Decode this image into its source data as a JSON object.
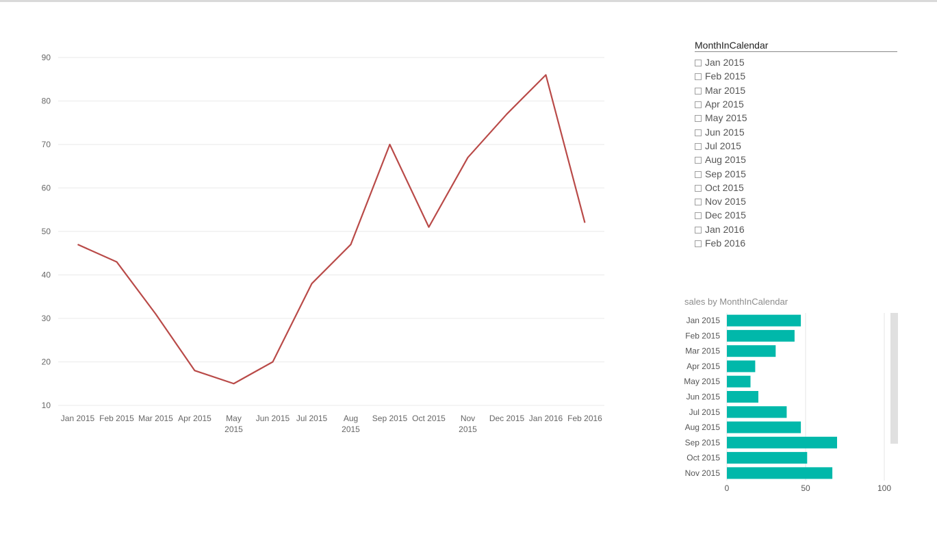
{
  "line_chart": {
    "chart_data": {
      "type": "line",
      "title": "",
      "xlabel": "",
      "ylabel": "",
      "categories": [
        [
          "Jan 2015"
        ],
        [
          "Feb 2015"
        ],
        [
          "Mar 2015"
        ],
        [
          "Apr 2015"
        ],
        [
          "May",
          "2015"
        ],
        [
          "Jun 2015"
        ],
        [
          "Jul 2015"
        ],
        [
          "Aug",
          "2015"
        ],
        [
          "Sep 2015"
        ],
        [
          "Oct 2015"
        ],
        [
          "Nov",
          "2015"
        ],
        [
          "Dec 2015"
        ],
        [
          "Jan 2016"
        ],
        [
          "Feb 2016"
        ]
      ],
      "series": [
        {
          "values": [
            47,
            43,
            31,
            18,
            15,
            20,
            38,
            47,
            70,
            51,
            67,
            77,
            86,
            52
          ]
        }
      ],
      "yticks": [
        10,
        20,
        30,
        40,
        50,
        60,
        70,
        80,
        90
      ],
      "ylim": [
        10,
        90
      ],
      "grid": true,
      "line_color": "#b94a48"
    }
  },
  "slicer": {
    "header": "MonthInCalendar",
    "items": [
      "Jan 2015",
      "Feb 2015",
      "Mar 2015",
      "Apr 2015",
      "May 2015",
      "Jun 2015",
      "Jul 2015",
      "Aug 2015",
      "Sep 2015",
      "Oct 2015",
      "Nov 2015",
      "Dec 2015",
      "Jan 2016",
      "Feb 2016"
    ]
  },
  "bar_chart": {
    "title": "sales by MonthInCalendar",
    "chart_data": {
      "type": "bar",
      "orientation": "horizontal",
      "categories": [
        "Jan 2015",
        "Feb 2015",
        "Mar 2015",
        "Apr 2015",
        "May 2015",
        "Jun 2015",
        "Jul 2015",
        "Aug 2015",
        "Sep 2015",
        "Oct 2015",
        "Nov 2015"
      ],
      "values": [
        47,
        43,
        31,
        18,
        15,
        20,
        38,
        47,
        70,
        51,
        67
      ],
      "xticks": [
        0,
        50,
        100
      ],
      "xlim": [
        0,
        100
      ],
      "grid": true,
      "bar_color": "#01b8aa"
    }
  }
}
